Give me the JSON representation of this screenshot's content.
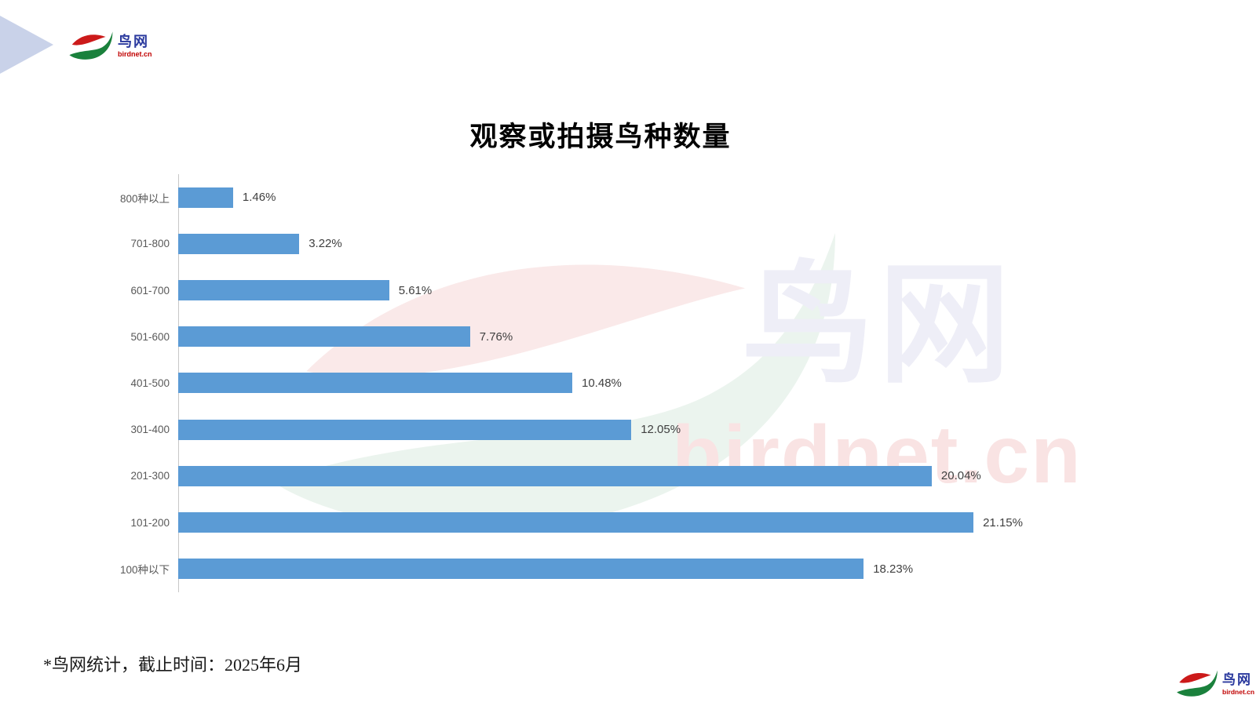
{
  "page": {
    "footnote": "*鸟网统计，截止时间：2025年6月"
  },
  "logo": {
    "name_cn": "鸟网",
    "domain": "birdnet.cn"
  },
  "watermark": {
    "name_cn": "鸟网",
    "domain": "birdnet.cn"
  },
  "chart_data": {
    "type": "bar",
    "orientation": "horizontal",
    "title": "观察或拍摄鸟种数量",
    "categories": [
      "800种以上",
      "701-800",
      "601-700",
      "501-600",
      "401-500",
      "301-400",
      "201-300",
      "101-200",
      "100种以下"
    ],
    "values": [
      1.46,
      3.22,
      5.61,
      7.76,
      10.48,
      12.05,
      20.04,
      21.15,
      18.23
    ],
    "value_labels": [
      "1.46%",
      "3.22%",
      "5.61%",
      "7.76%",
      "10.48%",
      "12.05%",
      "20.04%",
      "21.15%",
      "18.23%"
    ],
    "unit": "%",
    "xlim": [
      0,
      26.5
    ],
    "grid": false,
    "legend": null,
    "bar_color": "#5b9bd5"
  },
  "colors": {
    "bar_blue": "#5b9bd5",
    "axis_gray": "#c8c8c8",
    "category_label": "#595959",
    "value_label": "#3f3f3f",
    "corner_triangle": "#c9d2e9",
    "logo_red": "#cc1a1a",
    "logo_green": "#1a813c",
    "logo_blue_text": "#2b3a9e",
    "logo_domain_red": "#c00000",
    "watermark_pink": "#fae9e9",
    "watermark_green": "#ebf4ee",
    "watermark_lavender": "#eeeef7"
  }
}
